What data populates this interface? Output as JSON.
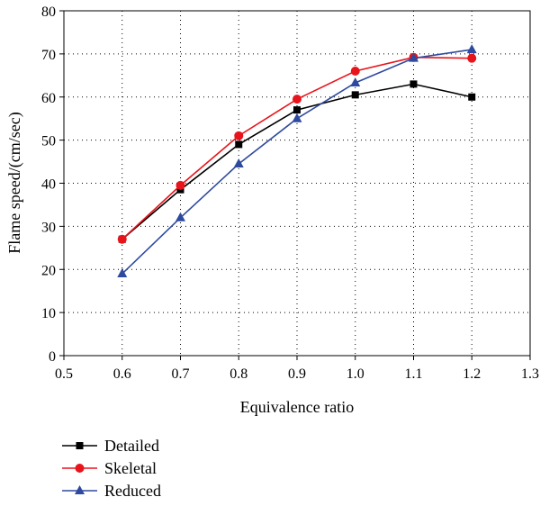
{
  "chart_data": {
    "type": "line",
    "title": "",
    "xlabel": "Equivalence ratio",
    "ylabel": "Flame speed/(cm/sec)",
    "xlim": [
      0.5,
      1.3
    ],
    "ylim": [
      0,
      80
    ],
    "x_ticks": [
      "0.5",
      "0.6",
      "0.7",
      "0.8",
      "0.9",
      "1.0",
      "1.1",
      "1.2",
      "1.3"
    ],
    "y_ticks": [
      "0",
      "10",
      "20",
      "30",
      "40",
      "50",
      "60",
      "70",
      "80"
    ],
    "grid": true,
    "legend_position": "bottom-left",
    "x": [
      0.6,
      0.7,
      0.8,
      0.9,
      1.0,
      1.1,
      1.2
    ],
    "series": [
      {
        "name": "Detailed",
        "color": "#000000",
        "marker": "square",
        "values": [
          27.0,
          38.5,
          49.0,
          57.0,
          60.5,
          63.0,
          60.0
        ]
      },
      {
        "name": "Skeletal",
        "color": "#e8141c",
        "marker": "circle",
        "values": [
          27.0,
          39.5,
          51.0,
          59.5,
          66.0,
          69.2,
          69.0
        ]
      },
      {
        "name": "Reduced",
        "color": "#2e4a9e",
        "marker": "triangle",
        "values": [
          19.0,
          32.0,
          44.5,
          55.0,
          63.3,
          69.0,
          71.0
        ]
      }
    ]
  }
}
